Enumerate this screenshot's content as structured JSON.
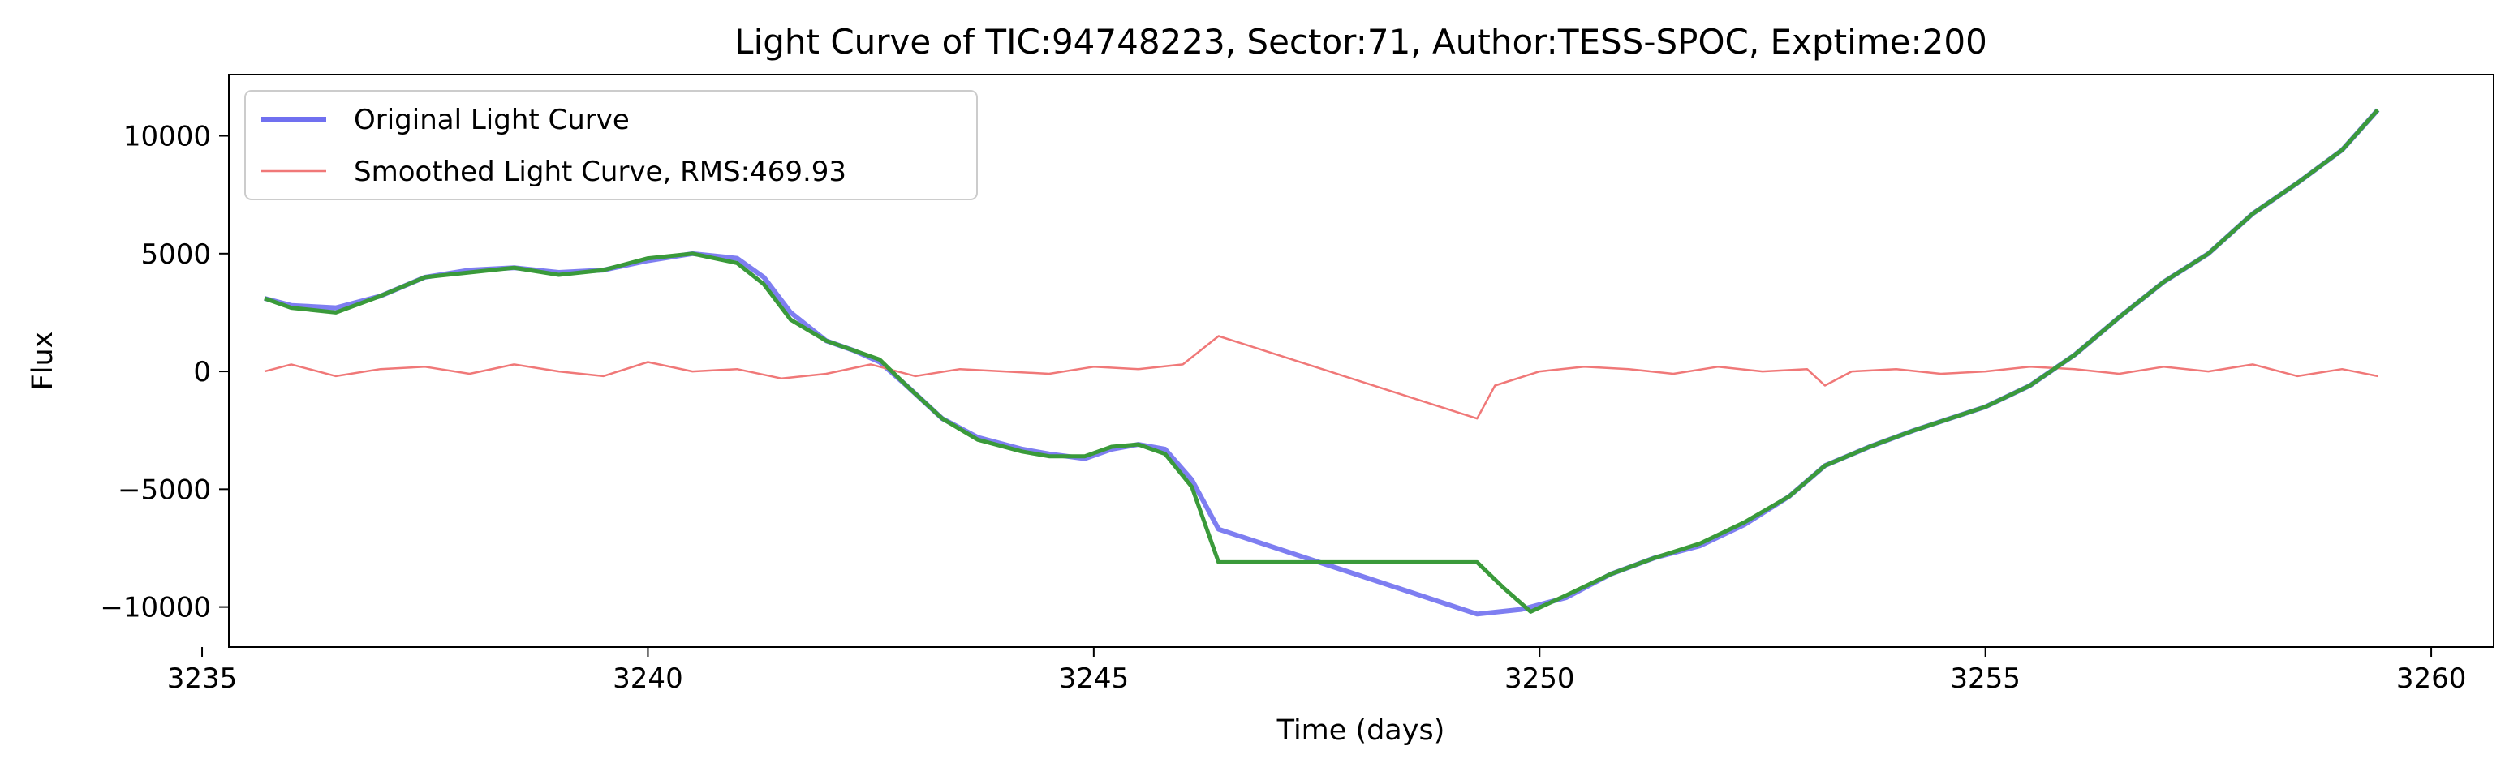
{
  "chart_data": {
    "type": "line",
    "title": "Light Curve of TIC:94748223, Sector:71, Author:TESS-SPOC, Exptime:200",
    "xlabel": "Time (days)",
    "ylabel": "Flux",
    "xlim": [
      3235.3,
      3260.7
    ],
    "ylim": [
      -11700,
      12600
    ],
    "xticks": [
      3235,
      3240,
      3245,
      3250,
      3255,
      3260
    ],
    "yticks": [
      -10000,
      -5000,
      0,
      5000,
      10000
    ],
    "xtick_labels": [
      "3235",
      "3240",
      "3245",
      "3250",
      "3255",
      "3260"
    ],
    "ytick_labels": [
      "−10000",
      "−5000",
      "0",
      "5000",
      "10000"
    ],
    "grid": false,
    "legend_position": "upper-left",
    "series": [
      {
        "name": "Original Light Curve",
        "color": "#7070f0",
        "role": "original",
        "x": [
          3235.7,
          3236.0,
          3236.5,
          3237.0,
          3237.5,
          3238.0,
          3238.5,
          3239.0,
          3239.5,
          3240.0,
          3240.5,
          3241.0,
          3241.3,
          3241.6,
          3242.0,
          3242.3,
          3242.6,
          3242.9,
          3243.3,
          3243.7,
          3244.2,
          3244.5,
          3244.9,
          3245.2,
          3245.5,
          3245.8,
          3246.1,
          3246.4,
          3249.3,
          3249.8,
          3250.3,
          3250.8,
          3251.3,
          3251.8,
          3252.3,
          3252.8,
          3253.2,
          3253.7,
          3254.2,
          3254.6,
          3255.0,
          3255.5,
          3256.0,
          3256.5,
          3257.0,
          3257.5,
          3258.0,
          3258.5,
          3259.0,
          3259.4
        ],
        "y": [
          3100,
          2800,
          2700,
          3200,
          4000,
          4300,
          4400,
          4200,
          4300,
          4700,
          5000,
          4800,
          4000,
          2500,
          1300,
          900,
          400,
          -600,
          -2000,
          -2800,
          -3300,
          -3500,
          -3700,
          -3300,
          -3100,
          -3300,
          -4600,
          -6700,
          -10300,
          -10100,
          -9600,
          -8600,
          -7900,
          -7400,
          -6500,
          -5300,
          -4000,
          -3200,
          -2500,
          -2000,
          -1500,
          -600,
          700,
          2300,
          3800,
          5000,
          6700,
          8000,
          9400,
          11100
        ]
      },
      {
        "name": "Smoothed Light Curve, RMS:469.93",
        "color": "#f07878",
        "role": "residual",
        "x": [
          3235.7,
          3236.0,
          3236.5,
          3237.0,
          3237.5,
          3238.0,
          3238.5,
          3239.0,
          3239.5,
          3240.0,
          3240.5,
          3241.0,
          3241.5,
          3242.0,
          3242.5,
          3243.0,
          3243.5,
          3244.0,
          3244.5,
          3245.0,
          3245.5,
          3246.0,
          3246.4,
          3249.3,
          3249.5,
          3250.0,
          3250.5,
          3251.0,
          3251.5,
          3252.0,
          3252.5,
          3253.0,
          3253.2,
          3253.5,
          3254.0,
          3254.5,
          3255.0,
          3255.5,
          3256.0,
          3256.5,
          3257.0,
          3257.5,
          3258.0,
          3258.5,
          3259.0,
          3259.4
        ],
        "y": [
          0,
          300,
          -200,
          100,
          200,
          -100,
          300,
          0,
          -200,
          400,
          0,
          100,
          -300,
          -100,
          300,
          -200,
          100,
          0,
          -100,
          200,
          100,
          300,
          1500,
          -2000,
          -600,
          0,
          200,
          100,
          -100,
          200,
          0,
          100,
          -600,
          0,
          100,
          -100,
          0,
          200,
          100,
          -100,
          200,
          0,
          300,
          -200,
          100,
          -200
        ]
      },
      {
        "name": "",
        "color": "#3a9a3a",
        "role": "trend",
        "x": [
          3235.7,
          3236.0,
          3236.5,
          3237.0,
          3237.5,
          3238.0,
          3238.5,
          3239.0,
          3239.5,
          3240.0,
          3240.5,
          3241.0,
          3241.3,
          3241.6,
          3242.0,
          3242.3,
          3242.6,
          3242.9,
          3243.3,
          3243.7,
          3244.2,
          3244.5,
          3244.9,
          3245.2,
          3245.5,
          3245.8,
          3246.1,
          3246.4,
          3249.3,
          3249.6,
          3249.9,
          3250.3,
          3250.8,
          3251.3,
          3251.8,
          3252.3,
          3252.8,
          3253.2,
          3253.7,
          3254.2,
          3254.6,
          3255.0,
          3255.5,
          3256.0,
          3256.5,
          3257.0,
          3257.5,
          3258.0,
          3258.5,
          3259.0,
          3259.4
        ],
        "y": [
          3100,
          2700,
          2500,
          3200,
          4000,
          4200,
          4400,
          4100,
          4300,
          4800,
          5000,
          4600,
          3700,
          2200,
          1300,
          900,
          500,
          -600,
          -2000,
          -2900,
          -3400,
          -3600,
          -3600,
          -3200,
          -3100,
          -3500,
          -4900,
          -8100,
          -8100,
          -9200,
          -10200,
          -9500,
          -8600,
          -7900,
          -7300,
          -6400,
          -5300,
          -4000,
          -3200,
          -2500,
          -2000,
          -1500,
          -600,
          700,
          2300,
          3800,
          5000,
          6700,
          8000,
          9400,
          11100
        ]
      }
    ]
  }
}
